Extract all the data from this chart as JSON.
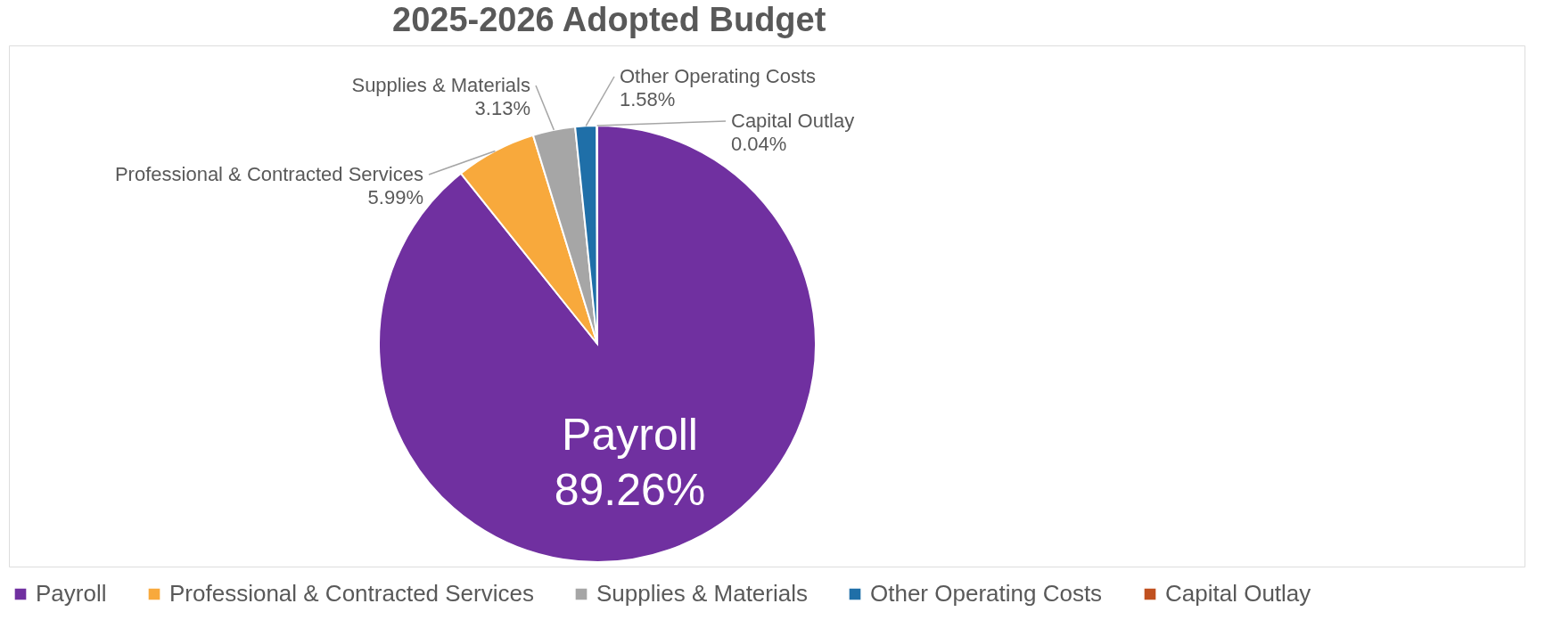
{
  "chart_data": {
    "type": "pie",
    "title": "2025-2026 Adopted Budget",
    "categories": [
      "Payroll",
      "Professional & Contracted Services",
      "Supplies & Materials",
      "Other Operating Costs",
      "Capital Outlay"
    ],
    "values": [
      89.26,
      5.99,
      3.13,
      1.58,
      0.04
    ],
    "value_labels": [
      "89.26%",
      "5.99%",
      "3.13%",
      "1.58%",
      "0.04%"
    ],
    "colors": [
      "#7030a0",
      "#f8a93c",
      "#a6a6a6",
      "#1f6fa8",
      "#c0501f"
    ],
    "legend": "bottom"
  }
}
